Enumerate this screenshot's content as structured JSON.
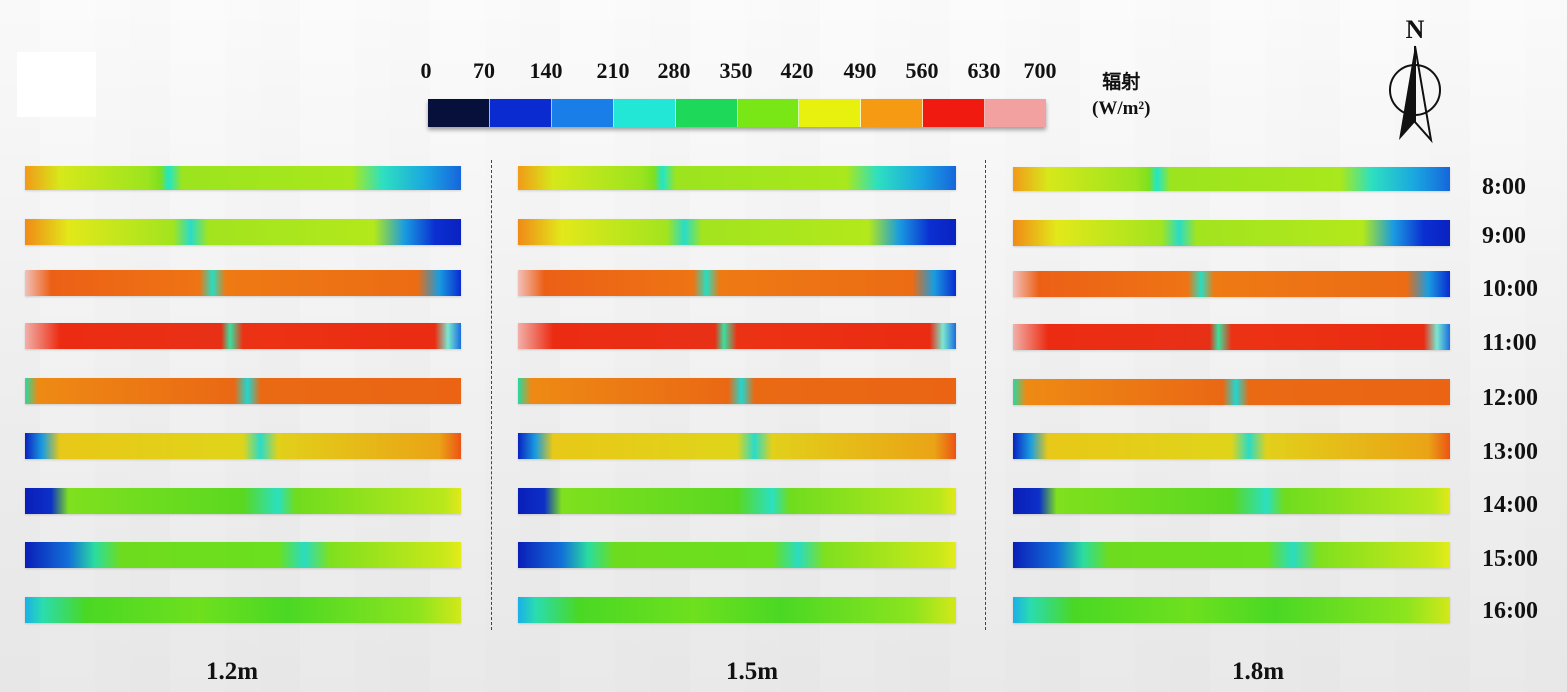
{
  "legend": {
    "title": "辐射",
    "unit": "(W/m²)",
    "ticks": [
      "0",
      "70",
      "140",
      "210",
      "280",
      "350",
      "420",
      "490",
      "560",
      "630",
      "700"
    ],
    "colors": [
      "#06103a",
      "#0a2bd0",
      "#1a7ee8",
      "#22e6d6",
      "#1ed85a",
      "#79e616",
      "#e8f00e",
      "#f59a12",
      "#f01a10",
      "#f2a0a0"
    ]
  },
  "compass": {
    "north_label": "N"
  },
  "columns": [
    {
      "label": "1.2m"
    },
    {
      "label": "1.5m"
    },
    {
      "label": "1.8m"
    }
  ],
  "times": [
    "8:00",
    "9:00",
    "10:00",
    "11:00",
    "12:00",
    "13:00",
    "14:00",
    "15:00",
    "16:00"
  ]
}
